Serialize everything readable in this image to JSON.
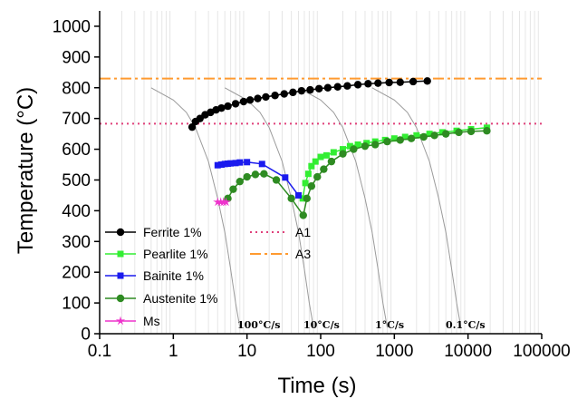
{
  "chart_data": {
    "type": "scatter",
    "title": "",
    "xlabel": "Time (s)",
    "ylabel": "Temperature (°C)",
    "x_scale": "log",
    "xlim": [
      0.1,
      100000
    ],
    "ylim": [
      0,
      1050
    ],
    "x_ticks": [
      0.1,
      1,
      10,
      100,
      1000,
      10000,
      100000
    ],
    "x_tick_labels": [
      "0.1",
      "1",
      "10",
      "100",
      "1000",
      "10000",
      "100000"
    ],
    "y_ticks": [
      0,
      100,
      200,
      300,
      400,
      500,
      600,
      700,
      800,
      900,
      1000
    ],
    "y_tick_labels": [
      "0",
      "100",
      "200",
      "300",
      "400",
      "500",
      "600",
      "700",
      "800",
      "900",
      "1000"
    ],
    "grid": "vertical minor lines",
    "legend_position": "bottom-left",
    "series": [
      {
        "name": "Ferrite 1%",
        "marker": "circle",
        "color": "#000000",
        "x": [
          1.8,
          2.0,
          2.3,
          2.7,
          3.2,
          3.8,
          4.5,
          5.5,
          7,
          9,
          11,
          14,
          18,
          24,
          32,
          42,
          55,
          72,
          95,
          125,
          170,
          230,
          320,
          440,
          600,
          850,
          1200,
          1800,
          2800
        ],
        "y": [
          672,
          690,
          700,
          712,
          720,
          728,
          734,
          740,
          748,
          755,
          760,
          765,
          770,
          775,
          780,
          785,
          790,
          793,
          797,
          800,
          803,
          806,
          810,
          813,
          815,
          817,
          818,
          820,
          822
        ]
      },
      {
        "name": "Pearlite 1%",
        "marker": "square",
        "color": "#33ee33",
        "x": [
          57,
          62,
          68,
          75,
          85,
          100,
          120,
          150,
          200,
          250,
          320,
          420,
          550,
          750,
          1000,
          1400,
          2000,
          3000,
          4500,
          7000,
          11000,
          18000
        ],
        "y": [
          440,
          490,
          520,
          545,
          560,
          575,
          580,
          590,
          600,
          610,
          615,
          620,
          625,
          630,
          635,
          640,
          645,
          650,
          655,
          660,
          665,
          670
        ]
      },
      {
        "name": "Bainite 1%",
        "marker": "square",
        "color": "#1a1aee",
        "x": [
          4.0,
          4.5,
          5.0,
          5.5,
          6.0,
          7.0,
          8.0,
          10.0,
          16,
          33,
          50
        ],
        "y": [
          548,
          550,
          552,
          553,
          554,
          555,
          557,
          558,
          552,
          508,
          450
        ]
      },
      {
        "name": "Austenite 1%",
        "marker": "circle",
        "color": "#2e8b22",
        "x": [
          5.5,
          6.5,
          8,
          10,
          13,
          17,
          25,
          40,
          58,
          65,
          75,
          90,
          110,
          140,
          200,
          280,
          400,
          550,
          800,
          1200,
          1700,
          2500,
          3500,
          5000,
          7500,
          11000,
          18000
        ],
        "y": [
          440,
          470,
          495,
          510,
          518,
          520,
          500,
          440,
          385,
          440,
          480,
          510,
          535,
          560,
          585,
          600,
          610,
          615,
          625,
          630,
          635,
          640,
          645,
          650,
          655,
          658,
          660
        ]
      },
      {
        "name": "Ms",
        "marker": "star",
        "color": "#ee33cc",
        "x": [
          4.0,
          4.4,
          4.8,
          5.2
        ],
        "y": [
          428,
          428,
          428,
          428
        ]
      }
    ],
    "reference_lines": [
      {
        "name": "A1",
        "y": 683,
        "style": "dotted",
        "color": "#e0407a"
      },
      {
        "name": "A3",
        "y": 830,
        "style": "dash-dot",
        "color": "#ff9a30"
      }
    ],
    "cooling_curves": [
      {
        "label": "100°C/s",
        "x": [
          0.5,
          1.0,
          1.5,
          2.0,
          3.0,
          4.0,
          5.0,
          6.0,
          7.0,
          8.0
        ],
        "y": [
          800,
          760,
          720,
          670,
          560,
          440,
          330,
          210,
          100,
          20
        ]
      },
      {
        "label": "10°C/s",
        "x": [
          5,
          10,
          15,
          20,
          30,
          40,
          50,
          60,
          70,
          80
        ],
        "y": [
          800,
          760,
          720,
          670,
          560,
          440,
          330,
          210,
          100,
          20
        ]
      },
      {
        "label": "1°C/s",
        "x": [
          50,
          100,
          150,
          200,
          300,
          400,
          500,
          600,
          700,
          800
        ],
        "y": [
          800,
          760,
          720,
          670,
          560,
          440,
          330,
          210,
          100,
          20
        ]
      },
      {
        "label": "0.1°C/s",
        "x": [
          500,
          1000,
          1500,
          2000,
          3000,
          4000,
          5000,
          6000,
          7000,
          8000
        ],
        "y": [
          800,
          760,
          720,
          670,
          560,
          440,
          330,
          210,
          100,
          20
        ]
      }
    ]
  }
}
